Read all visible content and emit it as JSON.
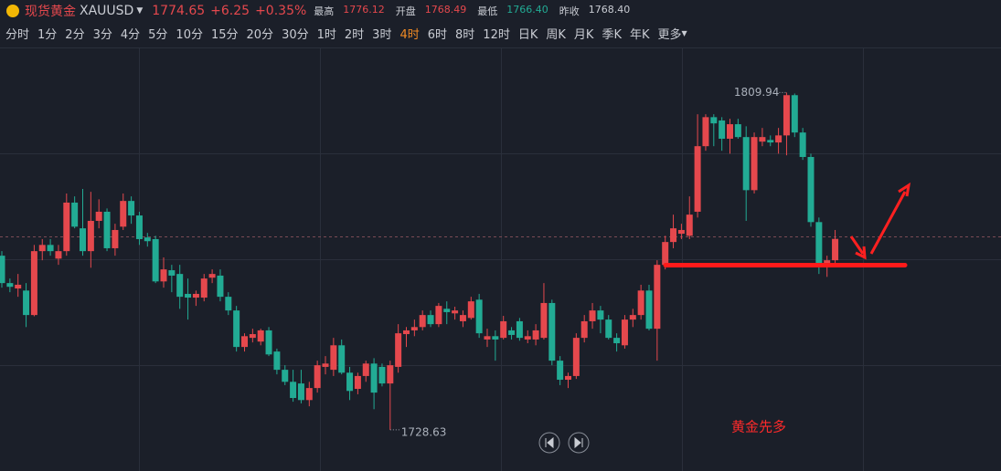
{
  "header": {
    "name": "现货黄金",
    "symbol": "XAUUSD",
    "price": "1774.65",
    "change": "+6.25",
    "change_pct": "+0.35%",
    "stats": [
      {
        "label": "最高",
        "value": "1776.12"
      },
      {
        "label": "开盘",
        "value": "1768.49"
      },
      {
        "label": "最低",
        "value": "1766.40"
      },
      {
        "label": "昨收",
        "value": "1768.40"
      }
    ]
  },
  "tabs": [
    "分时",
    "1分",
    "2分",
    "3分",
    "4分",
    "5分",
    "10分",
    "15分",
    "20分",
    "30分",
    "1时",
    "2时",
    "3时",
    "4时",
    "6时",
    "8时",
    "12时",
    "日K",
    "周K",
    "月K",
    "季K",
    "年K",
    "更多"
  ],
  "active_tab_index": 13,
  "chart_data": {
    "type": "candlestick",
    "up_color": "#e5484d",
    "down_color": "#22ab94",
    "ylim": [
      1718.7,
      1820.8
    ],
    "max_label": 1809.94,
    "min_label": 1728.63,
    "annotation": "黄金先多",
    "open": [
      1770.6,
      1764.0,
      1762.7,
      1762.2,
      1756.3,
      1771.7,
      1773.2,
      1769.9,
      1771.7,
      1783.4,
      1777.2,
      1771.7,
      1779.0,
      1781.2,
      1772.4,
      1777.6,
      1783.8,
      1780.3,
      1775.0,
      1774.6,
      1764.4,
      1767.1,
      1766.2,
      1761.4,
      1760.5,
      1760.5,
      1765.3,
      1765.8,
      1760.7,
      1757.4,
      1748.6,
      1750.8,
      1749.9,
      1752.6,
      1747.5,
      1743.1,
      1740.2,
      1739.8,
      1735.8,
      1738.7,
      1743.8,
      1743.1,
      1749.0,
      1742.4,
      1738.5,
      1741.6,
      1744.6,
      1743.8,
      1739.8,
      1743.8,
      1751.7,
      1752.6,
      1753.4,
      1756.3,
      1754.1,
      1757.8,
      1756.7,
      1754.8,
      1755.6,
      1760.0,
      1750.4,
      1751.2,
      1750.8,
      1752.6,
      1754.8,
      1750.4,
      1750.4,
      1750.8,
      1759.2,
      1745.3,
      1740.7,
      1741.6,
      1750.8,
      1754.8,
      1757.4,
      1755.2,
      1750.8,
      1749.0,
      1755.2,
      1756.3,
      1762.2,
      1753.0,
      1768.4,
      1773.9,
      1775.9,
      1775.4,
      1781.2,
      1797.0,
      1804.0,
      1803.2,
      1798.8,
      1802.3,
      1799.2,
      1786.4,
      1798.1,
      1798.5,
      1797.9,
      1799.6,
      1809.3,
      1800.3,
      1794.4,
      1778.7,
      1768.8,
      1769.5
    ],
    "high": [
      1771.7,
      1765.1,
      1766.2,
      1764.0,
      1773.2,
      1774.6,
      1774.6,
      1773.2,
      1785.6,
      1784.9,
      1786.7,
      1786.0,
      1784.2,
      1782.0,
      1778.3,
      1785.6,
      1784.9,
      1781.2,
      1776.1,
      1775.4,
      1770.2,
      1768.4,
      1768.4,
      1765.1,
      1762.2,
      1766.2,
      1767.3,
      1767.3,
      1761.8,
      1758.5,
      1751.9,
      1753.0,
      1753.0,
      1753.4,
      1748.2,
      1744.2,
      1743.1,
      1743.1,
      1740.2,
      1745.3,
      1746.4,
      1750.8,
      1750.4,
      1743.8,
      1742.4,
      1745.3,
      1745.9,
      1744.6,
      1745.3,
      1754.1,
      1753.4,
      1755.2,
      1757.4,
      1757.4,
      1759.2,
      1759.6,
      1758.3,
      1757.4,
      1760.7,
      1761.4,
      1753.0,
      1752.6,
      1756.1,
      1753.4,
      1755.6,
      1752.6,
      1754.1,
      1764.0,
      1760.0,
      1746.4,
      1742.4,
      1751.9,
      1756.3,
      1759.2,
      1758.5,
      1756.3,
      1751.9,
      1756.3,
      1757.8,
      1763.6,
      1763.6,
      1769.5,
      1775.4,
      1780.5,
      1778.3,
      1784.9,
      1804.7,
      1804.7,
      1804.7,
      1804.0,
      1803.6,
      1803.6,
      1801.8,
      1800.3,
      1801.4,
      1799.6,
      1801.4,
      1809.94,
      1809.7,
      1801.4,
      1795.2,
      1779.8,
      1770.6,
      1776.8
    ],
    "low": [
      1762.9,
      1761.8,
      1760.7,
      1753.4,
      1756.0,
      1769.5,
      1770.6,
      1768.4,
      1770.6,
      1777.2,
      1770.6,
      1767.7,
      1777.2,
      1771.7,
      1770.6,
      1776.8,
      1778.3,
      1773.2,
      1772.8,
      1764.0,
      1762.9,
      1761.8,
      1757.8,
      1755.2,
      1758.5,
      1759.6,
      1764.0,
      1759.6,
      1756.3,
      1747.5,
      1747.5,
      1749.7,
      1749.0,
      1746.4,
      1742.0,
      1739.4,
      1735.4,
      1735.0,
      1734.3,
      1737.6,
      1742.0,
      1741.6,
      1742.0,
      1735.8,
      1737.2,
      1740.2,
      1733.6,
      1739.1,
      1728.63,
      1742.4,
      1748.6,
      1751.2,
      1752.6,
      1753.4,
      1753.4,
      1754.1,
      1755.2,
      1753.4,
      1755.2,
      1750.8,
      1748.6,
      1745.3,
      1750.4,
      1750.4,
      1750.1,
      1749.5,
      1749.0,
      1750.4,
      1744.2,
      1739.4,
      1738.7,
      1740.9,
      1749.7,
      1753.0,
      1751.9,
      1750.4,
      1747.5,
      1748.2,
      1753.4,
      1755.2,
      1752.6,
      1745.3,
      1767.3,
      1772.4,
      1774.6,
      1774.6,
      1779.8,
      1795.9,
      1797.0,
      1795.9,
      1795.2,
      1798.8,
      1779.0,
      1785.6,
      1797.0,
      1797.0,
      1795.2,
      1794.8,
      1799.2,
      1793.7,
      1777.6,
      1766.2,
      1765.5,
      1768.0
    ],
    "close": [
      1764.0,
      1763.1,
      1763.6,
      1756.3,
      1771.7,
      1773.2,
      1771.7,
      1771.7,
      1783.4,
      1777.6,
      1771.7,
      1779.0,
      1781.2,
      1772.4,
      1776.8,
      1783.8,
      1780.3,
      1774.6,
      1774.1,
      1764.4,
      1767.3,
      1765.8,
      1760.7,
      1760.5,
      1761.4,
      1765.1,
      1766.2,
      1760.7,
      1757.4,
      1748.6,
      1751.2,
      1751.7,
      1752.6,
      1746.8,
      1743.1,
      1740.2,
      1736.3,
      1735.8,
      1738.7,
      1744.2,
      1744.6,
      1749.0,
      1742.4,
      1738.0,
      1741.6,
      1744.6,
      1737.6,
      1739.8,
      1744.2,
      1751.9,
      1752.6,
      1753.4,
      1756.3,
      1754.1,
      1758.5,
      1757.0,
      1757.4,
      1756.3,
      1759.6,
      1751.9,
      1751.2,
      1750.4,
      1754.8,
      1751.5,
      1750.8,
      1751.2,
      1752.6,
      1759.2,
      1745.3,
      1740.7,
      1741.6,
      1750.8,
      1754.8,
      1757.4,
      1755.2,
      1750.8,
      1749.5,
      1755.2,
      1756.3,
      1762.2,
      1753.0,
      1768.4,
      1773.9,
      1777.2,
      1776.8,
      1780.5,
      1797.0,
      1804.0,
      1802.5,
      1798.8,
      1802.3,
      1799.2,
      1786.4,
      1799.2,
      1799.2,
      1797.9,
      1799.6,
      1809.3,
      1800.3,
      1794.4,
      1778.7,
      1768.8,
      1769.5,
      1774.65
    ]
  }
}
